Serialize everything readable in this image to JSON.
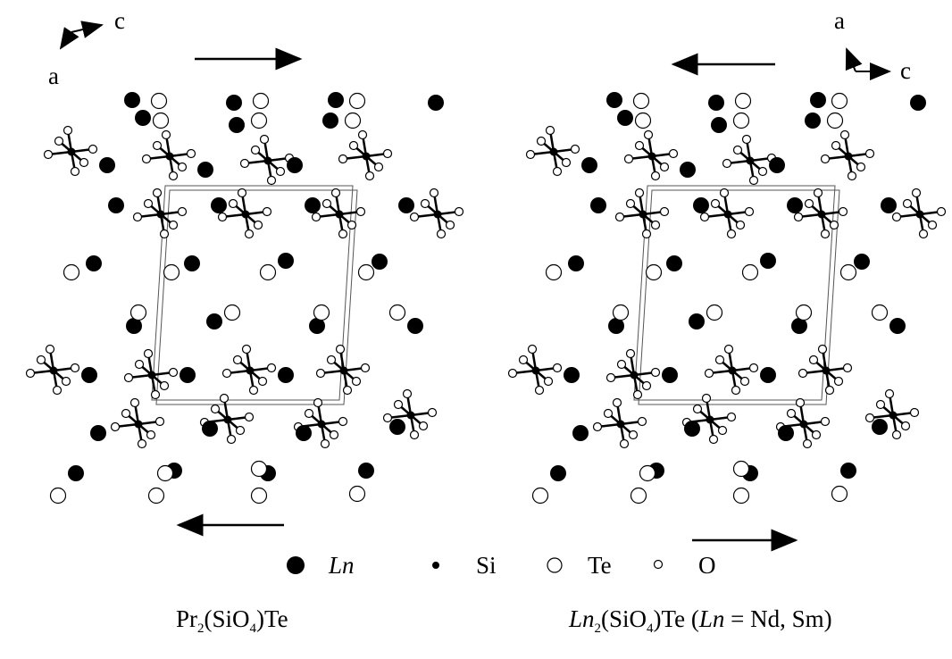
{
  "left_panel": {
    "axes": {
      "horizontal": "c",
      "vertical": "a"
    },
    "caption": {
      "parts": [
        "Pr",
        "2",
        "(SiO",
        "4",
        ")Te"
      ]
    }
  },
  "right_panel": {
    "axes": {
      "vertical": "a",
      "horizontal": "c"
    },
    "caption": {
      "parts": [
        "Ln",
        "2",
        "(SiO",
        "4",
        ")Te (",
        "Ln",
        " = Nd, Sm)"
      ]
    }
  },
  "legend": {
    "items": [
      {
        "label": "Ln"
      },
      {
        "label": "Si"
      },
      {
        "label": "Te"
      },
      {
        "label": "O"
      }
    ]
  }
}
